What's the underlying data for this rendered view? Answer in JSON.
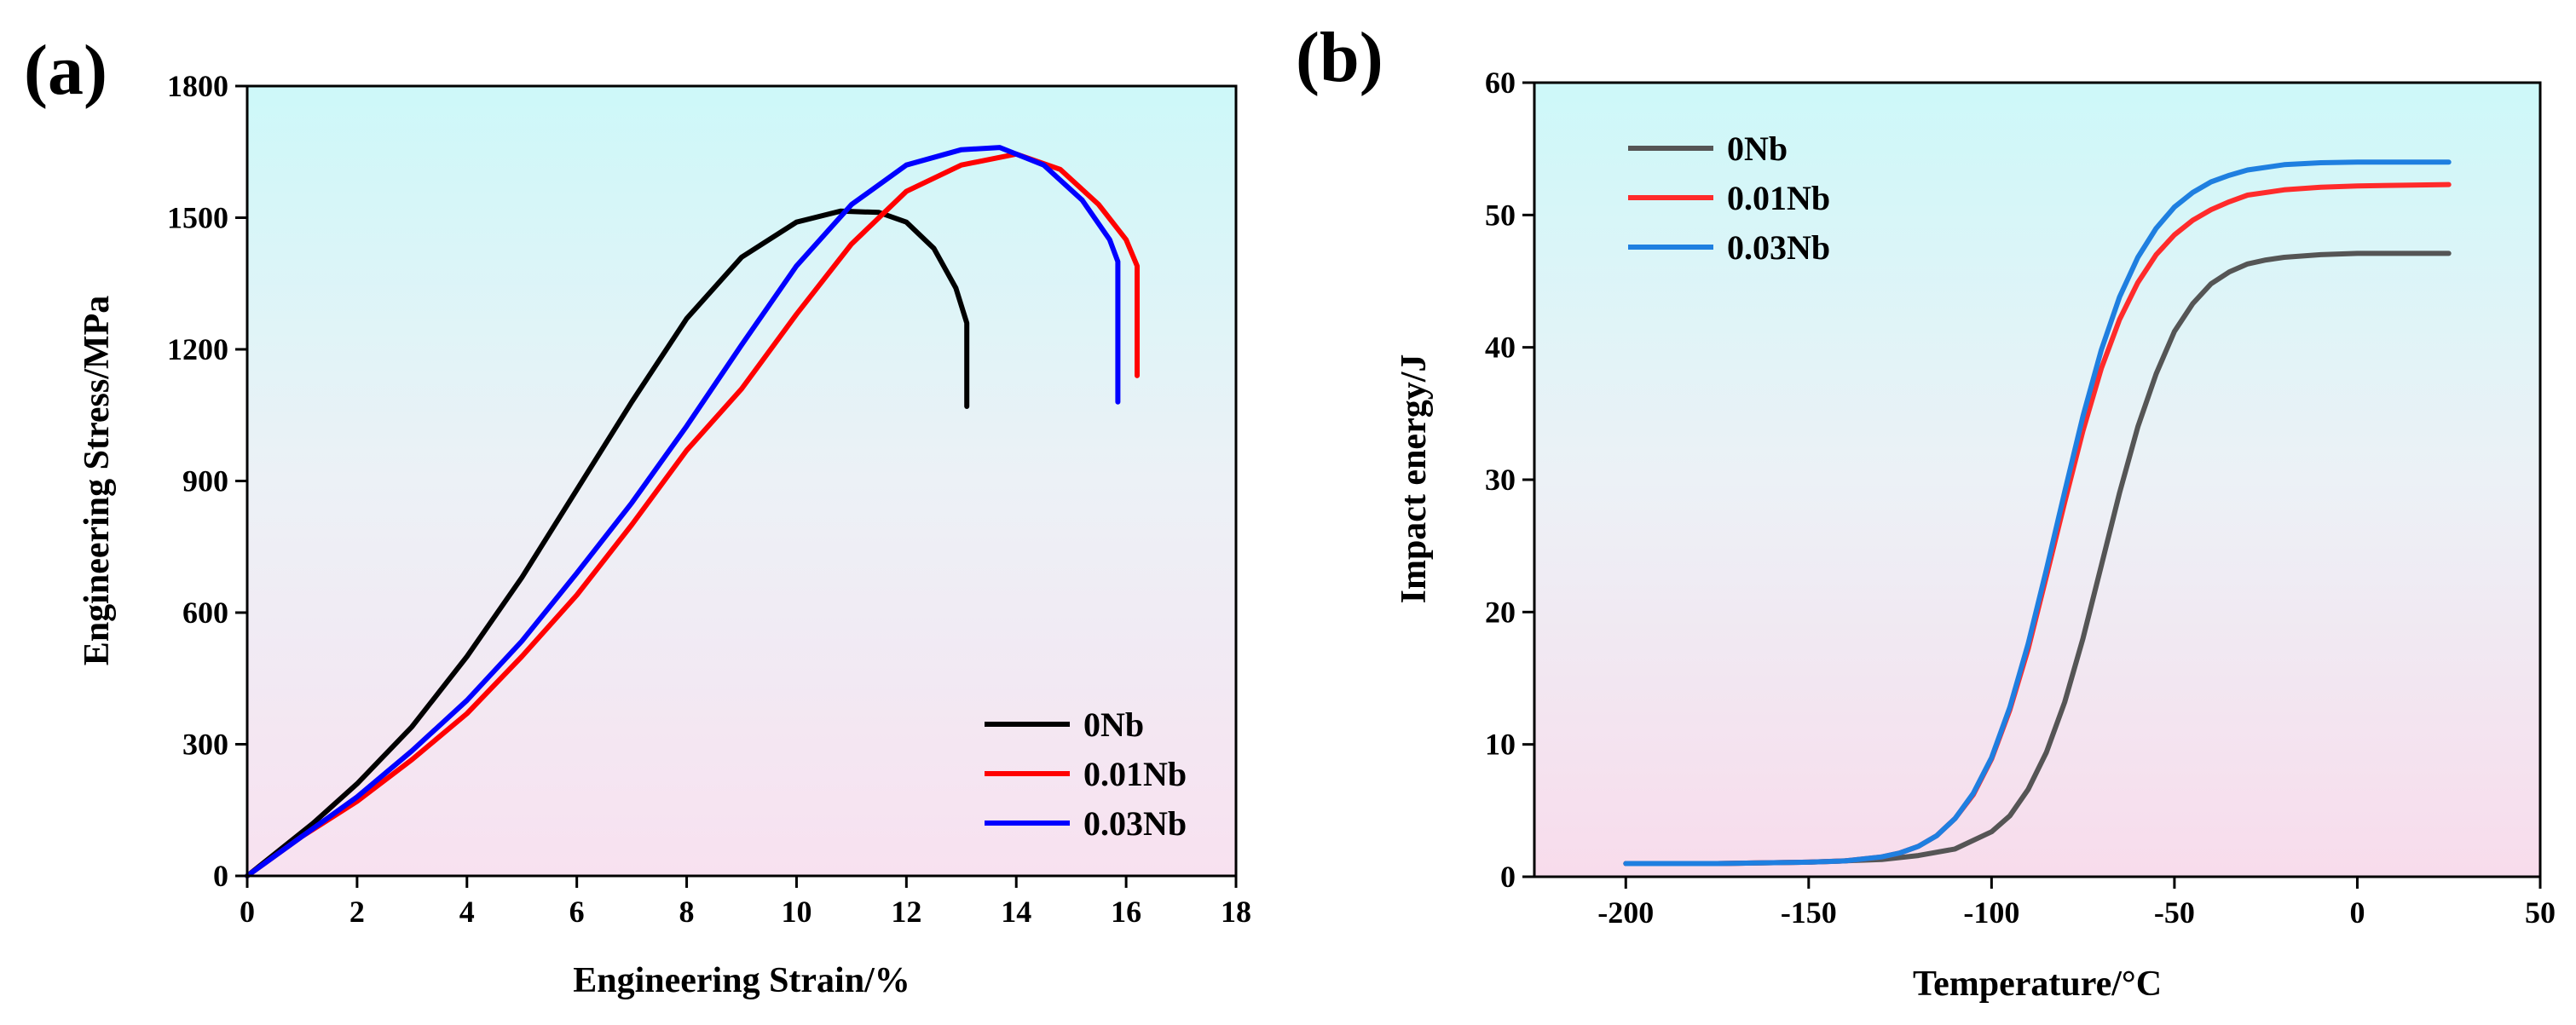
{
  "chart_data": [
    {
      "panel": "(a)",
      "type": "line",
      "title": "",
      "xlabel": "Engineering Strain/%",
      "ylabel": "Engineering Stress/MPa",
      "xlim": [
        0,
        18
      ],
      "ylim": [
        0,
        1800
      ],
      "xticks": [
        "0",
        "2",
        "4",
        "6",
        "8",
        "10",
        "12",
        "14",
        "16",
        "18"
      ],
      "yticks": [
        "0",
        "300",
        "600",
        "900",
        "1200",
        "1500",
        "1800"
      ],
      "legend_position": "bottom-right",
      "series": [
        {
          "name": "0Nb",
          "color": "#000000",
          "x": [
            0,
            0.6,
            1.2,
            2,
            3,
            4,
            5,
            6,
            7,
            8,
            9,
            10,
            10.8,
            11.5,
            12,
            12.5,
            12.9,
            13.1,
            13.1
          ],
          "y": [
            0,
            60,
            120,
            210,
            340,
            500,
            680,
            880,
            1080,
            1270,
            1410,
            1490,
            1515,
            1512,
            1490,
            1430,
            1340,
            1260,
            1070
          ]
        },
        {
          "name": "0.01Nb",
          "color": "#ff0000",
          "x": [
            0,
            1,
            2,
            3,
            4,
            5,
            6,
            7,
            8,
            9,
            10,
            11,
            12,
            13,
            14,
            14.8,
            15.5,
            16,
            16.2,
            16.2
          ],
          "y": [
            0,
            90,
            170,
            265,
            370,
            500,
            640,
            800,
            970,
            1110,
            1280,
            1440,
            1560,
            1620,
            1645,
            1610,
            1530,
            1450,
            1390,
            1140
          ]
        },
        {
          "name": "0.03Nb",
          "color": "#0000ff",
          "x": [
            0,
            1,
            2,
            3,
            4,
            5,
            6,
            7,
            8,
            9,
            10,
            11,
            12,
            13,
            13.7,
            14.5,
            15.2,
            15.7,
            15.85,
            15.85
          ],
          "y": [
            0,
            90,
            180,
            285,
            400,
            535,
            690,
            850,
            1025,
            1210,
            1390,
            1530,
            1620,
            1655,
            1660,
            1620,
            1540,
            1450,
            1400,
            1080
          ]
        }
      ]
    },
    {
      "panel": "(b)",
      "type": "line",
      "title": "",
      "xlabel": "Temperature/°C",
      "ylabel": "Impact energy/J",
      "xlim": [
        -225,
        50
      ],
      "ylim": [
        0,
        60
      ],
      "xtick_values": [
        -200,
        -150,
        -100,
        -50,
        0,
        50
      ],
      "xticks": [
        "-200",
        "-150",
        "-100",
        "-50",
        "0",
        "50"
      ],
      "ytick_values": [
        0,
        10,
        20,
        30,
        40,
        50,
        60
      ],
      "yticks": [
        "0",
        "10",
        "20",
        "30",
        "40",
        "50",
        "60"
      ],
      "legend_position": "top-left",
      "series": [
        {
          "name": "0Nb",
          "color": "#555555",
          "x": [
            -200,
            -175,
            -150,
            -130,
            -120,
            -110,
            -100,
            -95,
            -90,
            -85,
            -80,
            -75,
            -70,
            -65,
            -60,
            -55,
            -50,
            -45,
            -40,
            -35,
            -30,
            -25,
            -20,
            -10,
            0,
            25
          ],
          "y": [
            1,
            1,
            1.1,
            1.3,
            1.6,
            2.1,
            3.4,
            4.6,
            6.6,
            9.4,
            13.2,
            18,
            23.5,
            29,
            34,
            38,
            41.2,
            43.3,
            44.8,
            45.7,
            46.3,
            46.6,
            46.8,
            47,
            47.1,
            47.1
          ]
        },
        {
          "name": "0.01Nb",
          "color": "#ff2b2b",
          "x": [
            -200,
            -175,
            -150,
            -140,
            -130,
            -125,
            -120,
            -115,
            -110,
            -105,
            -100,
            -95,
            -90,
            -85,
            -80,
            -75,
            -70,
            -65,
            -60,
            -55,
            -50,
            -45,
            -40,
            -35,
            -30,
            -20,
            -10,
            0,
            25
          ],
          "y": [
            1,
            1,
            1.1,
            1.2,
            1.5,
            1.8,
            2.3,
            3.1,
            4.4,
            6.2,
            8.9,
            12.6,
            17.2,
            22.7,
            28.3,
            33.7,
            38.4,
            42.1,
            44.9,
            47,
            48.5,
            49.6,
            50.4,
            51,
            51.5,
            51.9,
            52.1,
            52.2,
            52.3
          ]
        },
        {
          "name": "0.03Nb",
          "color": "#1f7fe0",
          "x": [
            -200,
            -175,
            -150,
            -140,
            -130,
            -125,
            -120,
            -115,
            -110,
            -105,
            -100,
            -95,
            -90,
            -85,
            -80,
            -75,
            -70,
            -65,
            -60,
            -55,
            -50,
            -45,
            -40,
            -35,
            -30,
            -20,
            -10,
            0,
            25
          ],
          "y": [
            1,
            1,
            1.1,
            1.2,
            1.5,
            1.8,
            2.3,
            3.1,
            4.4,
            6.3,
            9,
            12.8,
            17.6,
            23.2,
            29.1,
            34.8,
            39.8,
            43.8,
            46.8,
            49,
            50.6,
            51.7,
            52.5,
            53,
            53.4,
            53.8,
            53.95,
            54,
            54
          ]
        }
      ]
    }
  ]
}
